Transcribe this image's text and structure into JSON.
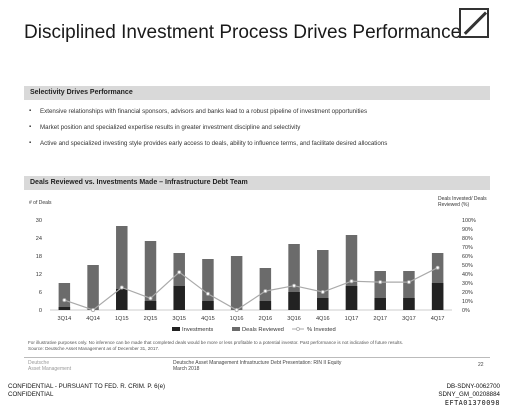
{
  "title": "Disciplined Investment Process Drives Performance",
  "section1": {
    "heading": "Selectivity Drives Performance",
    "bullets": [
      "Extensive relationships with financial sponsors, advisors and banks lead to a robust pipeline of investment opportunities",
      "Market position and specialized expertise results in greater investment discipline and selectivity",
      "Active and specialized investing style provides early access to deals, ability to influence terms, and facilitate desired allocations"
    ]
  },
  "section2": {
    "heading": "Deals Reviewed vs. Investments Made – Infrastructure Debt Team"
  },
  "chart_data": {
    "type": "bar",
    "categories": [
      "3Q14",
      "4Q14",
      "1Q15",
      "2Q15",
      "3Q15",
      "4Q15",
      "1Q16",
      "2Q16",
      "3Q16",
      "4Q16",
      "1Q17",
      "2Q17",
      "3Q17",
      "4Q17"
    ],
    "series": [
      {
        "name": "Investments",
        "type": "bar",
        "axis": "left",
        "values": [
          1,
          0,
          7,
          3,
          8,
          3,
          0,
          3,
          6,
          4,
          8,
          4,
          4,
          9
        ]
      },
      {
        "name": "Deals Reviewed",
        "type": "bar",
        "axis": "left",
        "values": [
          9,
          15,
          28,
          23,
          19,
          17,
          18,
          14,
          22,
          20,
          25,
          13,
          13,
          19
        ]
      },
      {
        "name": "% Invested",
        "type": "line",
        "axis": "right",
        "values": [
          11,
          0,
          25,
          13,
          42,
          18,
          0,
          21,
          27,
          20,
          32,
          31,
          31,
          47
        ]
      }
    ],
    "ylabel": "# of Deals",
    "ylim": [
      0,
      30
    ],
    "yticks": [
      0,
      6,
      12,
      18,
      24,
      30
    ],
    "y2label": "Deals Invested/ Deals Reviewed (%)",
    "y2lim": [
      0,
      100
    ],
    "y2ticks": [
      "0%",
      "10%",
      "20%",
      "30%",
      "40%",
      "50%",
      "60%",
      "70%",
      "80%",
      "90%",
      "100%"
    ],
    "legend_position": "bottom",
    "colors": {
      "investments": "#222222",
      "deals_reviewed": "#6b6b6b",
      "pct_line": "#aaaaaa"
    }
  },
  "footnote": {
    "line1": "For illustrative purposes only. No inference can be made that completed deals would be more or less profitable to a potential investor. Past performance is not indicative of future results.",
    "line2": "Source: Deutsche Asset Management as of December 31, 2017."
  },
  "footer": {
    "brand_line1": "Deutsche",
    "brand_line2": "Asset Management",
    "doc_line1": "Deutsche Asset Management Infrastructure Debt Presentation: RIN II Equity",
    "doc_line2": "March 2018",
    "page": "22"
  },
  "stamps": {
    "left1": "CONFIDENTIAL - PURSUANT TO FED. R. CRIM. P. 6(e)",
    "left2": "CONFIDENTIAL",
    "right1": "DB-SDNY-0062700",
    "right2": "SDNY_GM_00208884",
    "right3": "EFTA01370098"
  }
}
